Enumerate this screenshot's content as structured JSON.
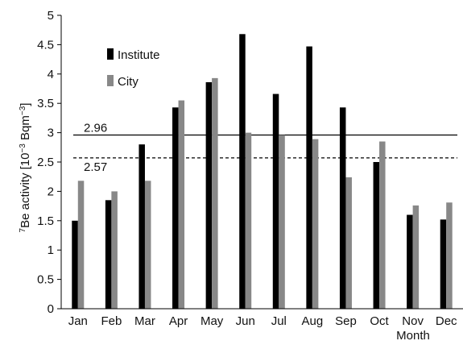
{
  "chart_data": {
    "type": "bar",
    "categories": [
      "Jan",
      "Feb",
      "Mar",
      "Apr",
      "May",
      "Jun",
      "Jul",
      "Aug",
      "Sep",
      "Oct",
      "Nov",
      "Dec"
    ],
    "series": [
      {
        "name": "Institute",
        "color": "#000000",
        "values": [
          1.5,
          1.85,
          2.8,
          3.43,
          3.86,
          4.68,
          3.66,
          4.47,
          3.43,
          2.5,
          1.6,
          1.52
        ]
      },
      {
        "name": "City",
        "color": "#888888",
        "values": [
          2.18,
          2.0,
          2.18,
          3.55,
          3.93,
          3.0,
          2.96,
          2.89,
          2.24,
          2.85,
          1.76,
          1.81
        ]
      }
    ],
    "ylim": [
      0,
      5
    ],
    "yticks": [
      "0",
      "0.5",
      "1",
      "1.5",
      "2",
      "2.5",
      "3",
      "3.5",
      "4",
      "4.5",
      "5"
    ],
    "ylabel_prefix": "7",
    "ylabel_main": "Be activity [10",
    "ylabel_exp1": "−3",
    "ylabel_unit": " Bqm",
    "ylabel_exp2": "−3",
    "ylabel_close": "]",
    "xlabel": "Month",
    "grid": false,
    "legend_position": "top-left",
    "reference_lines": [
      {
        "value": 2.96,
        "label": "2.96",
        "style": "solid"
      },
      {
        "value": 2.57,
        "label": "2.57",
        "style": "dashed"
      }
    ]
  }
}
